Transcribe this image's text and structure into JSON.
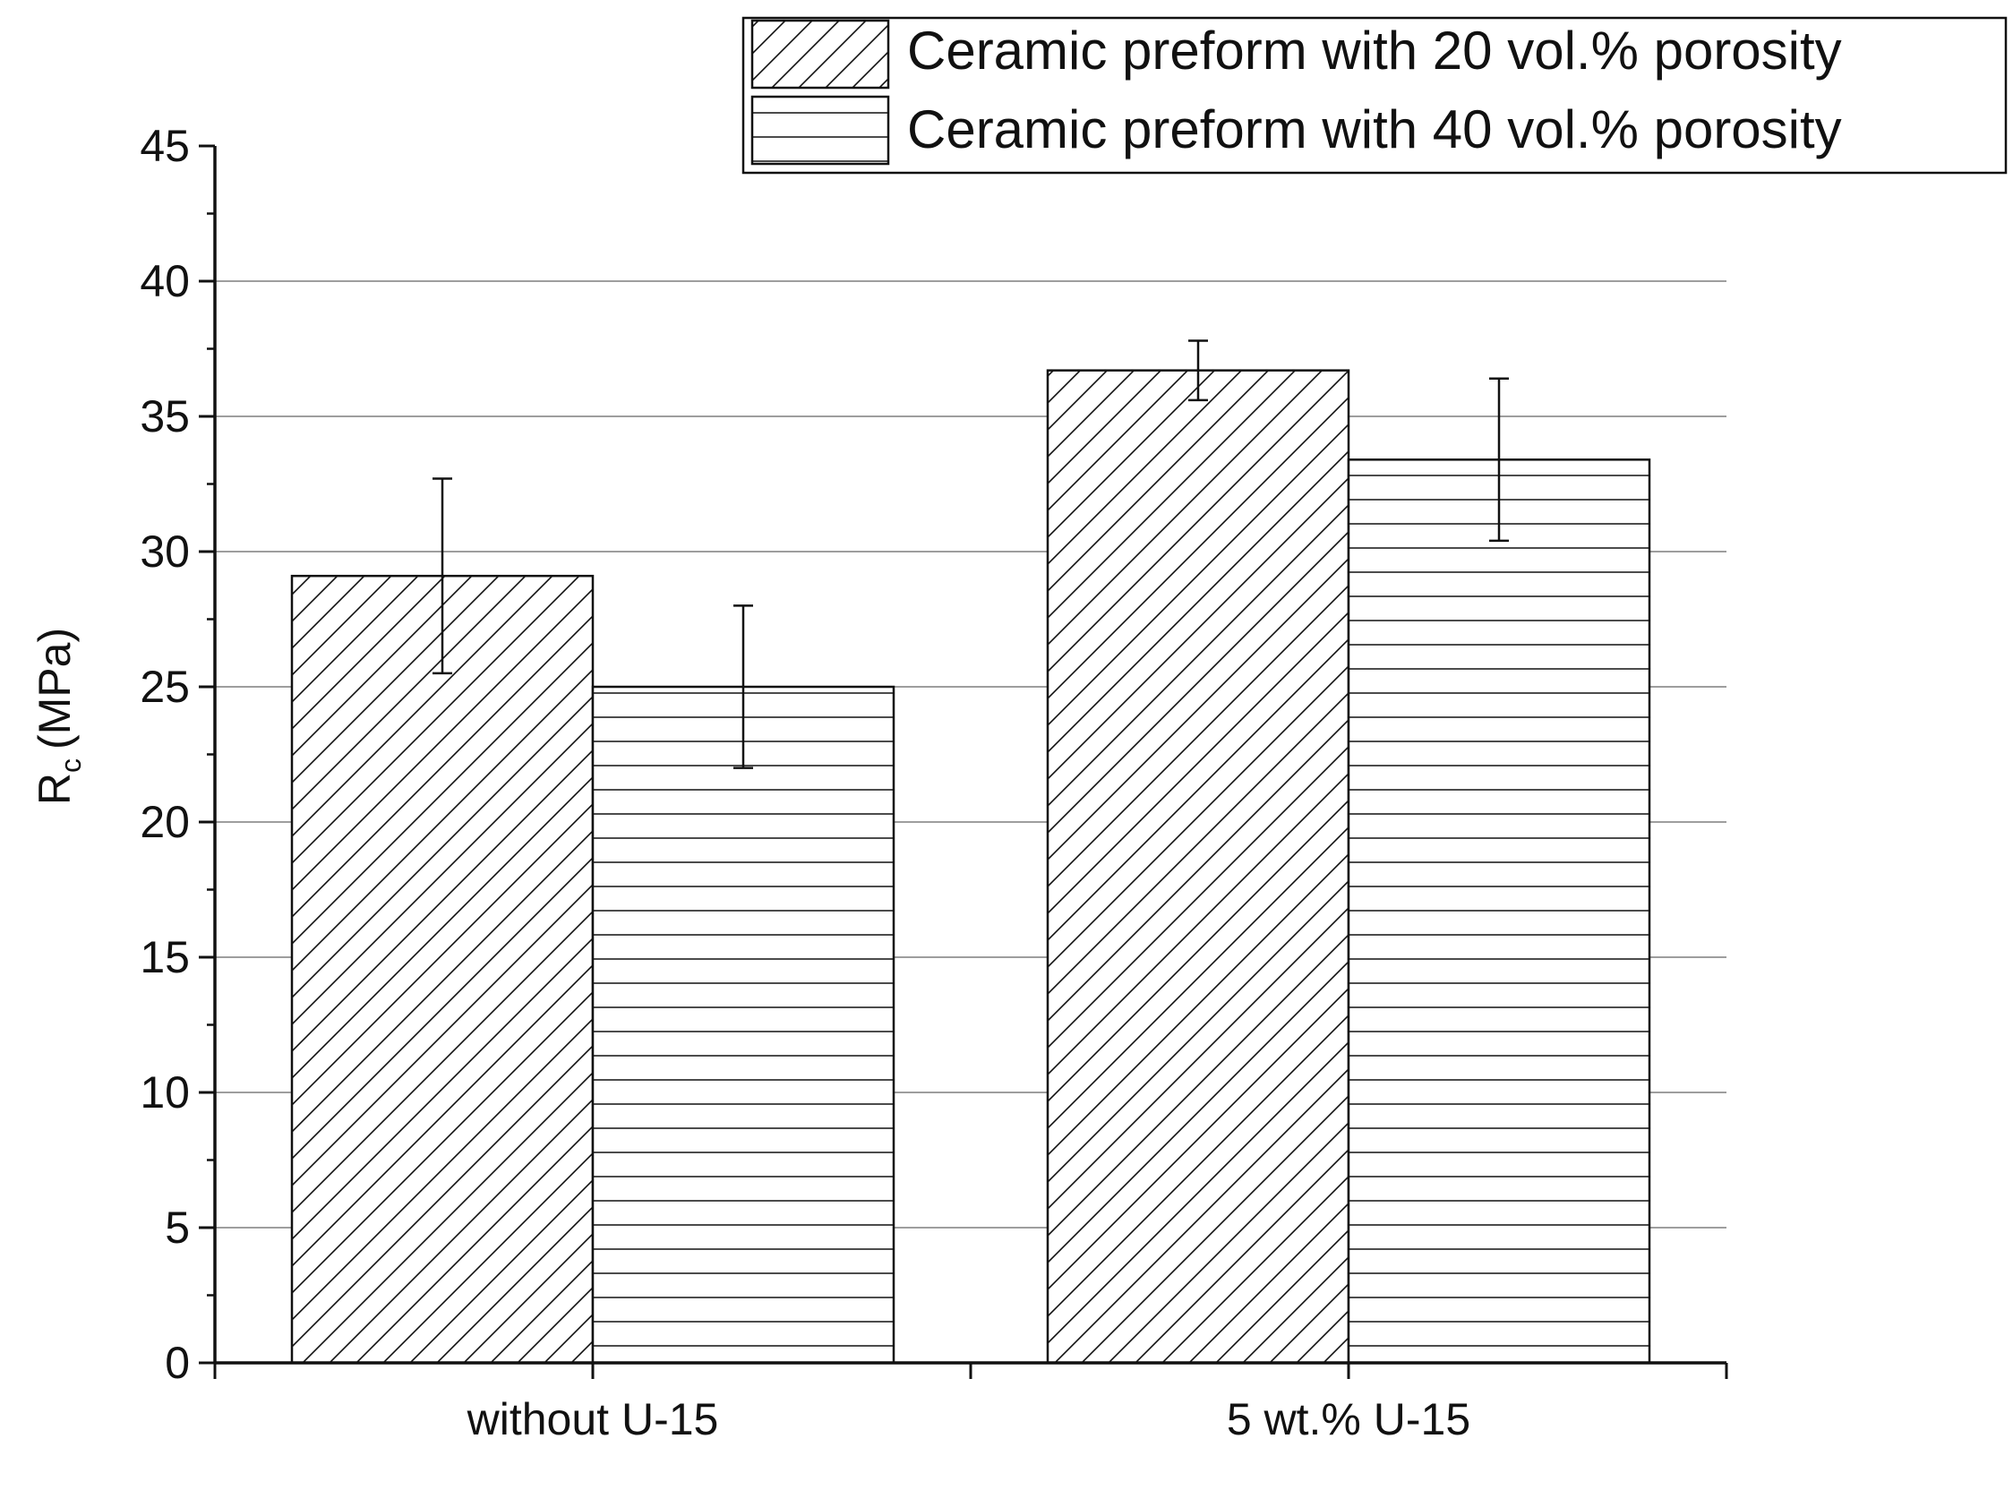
{
  "chart_data": {
    "type": "bar",
    "title": "",
    "ylabel_main": "R",
    "ylabel_sub": "c",
    "ylabel_unit": "(MPa)",
    "xlabel": "",
    "categories": [
      "without U-15",
      "5 wt.% U-15"
    ],
    "ylim": [
      0,
      45
    ],
    "yticks": [
      "0",
      "5",
      "10",
      "15",
      "20",
      "25",
      "30",
      "35",
      "40",
      "45"
    ],
    "grid": true,
    "legend_position": "top-right",
    "series": [
      {
        "name": "Ceramic preform with 20 vol.% porosity",
        "pattern": "diagonal-hatch",
        "values": [
          29.1,
          36.7
        ],
        "errors": [
          3.6,
          1.1
        ]
      },
      {
        "name": "Ceramic preform with 40 vol.% porosity",
        "pattern": "horizontal-hatch",
        "values": [
          25.0,
          33.4
        ],
        "errors": [
          3.0,
          3.0
        ]
      }
    ],
    "colors": {
      "stroke": "#111111",
      "grid": "#9e9e9e",
      "fill": "#ffffff"
    }
  }
}
